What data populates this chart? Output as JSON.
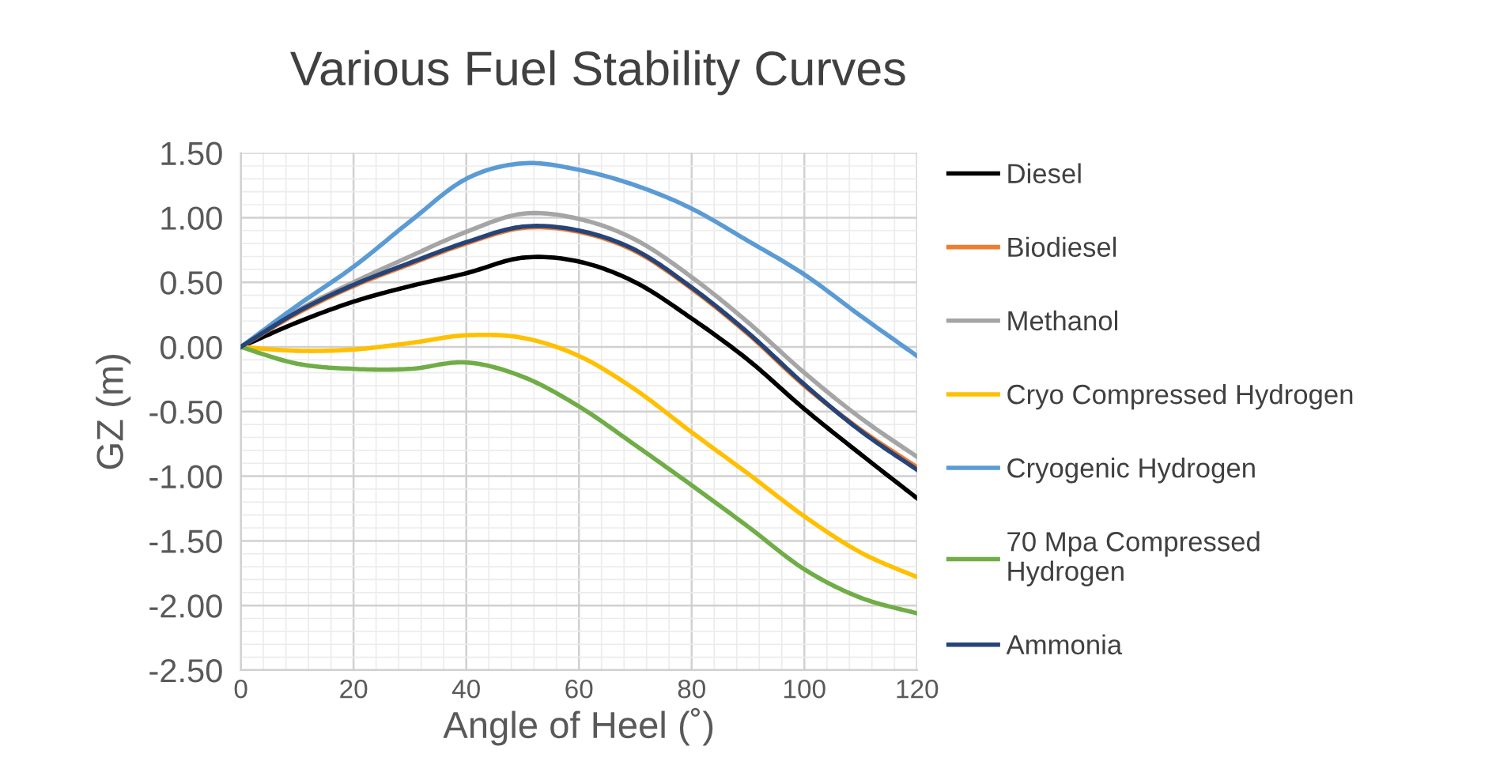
{
  "chart_data": {
    "type": "line",
    "title": "Various Fuel Stability Curves",
    "xlabel": "Angle of Heel (˚)",
    "ylabel": "GZ (m)",
    "x": [
      0,
      10,
      20,
      30,
      40,
      50,
      60,
      70,
      80,
      90,
      100,
      110,
      120
    ],
    "series": [
      {
        "name": "Diesel",
        "color": "#000000",
        "values": [
          0,
          0.19,
          0.35,
          0.47,
          0.57,
          0.69,
          0.66,
          0.5,
          0.22,
          -0.1,
          -0.48,
          -0.83,
          -1.17
        ]
      },
      {
        "name": "Biodiesel",
        "color": "#ed7d31",
        "values": [
          0,
          0.26,
          0.47,
          0.64,
          0.8,
          0.92,
          0.89,
          0.74,
          0.45,
          0.1,
          -0.3,
          -0.64,
          -0.93
        ]
      },
      {
        "name": "Methanol",
        "color": "#a5a5a5",
        "values": [
          0,
          0.28,
          0.5,
          0.7,
          0.89,
          1.03,
          0.99,
          0.83,
          0.54,
          0.19,
          -0.2,
          -0.55,
          -0.85
        ]
      },
      {
        "name": "Cryo Compressed Hydrogen",
        "color": "#ffc000",
        "values": [
          0,
          -0.03,
          -0.02,
          0.03,
          0.09,
          0.07,
          -0.07,
          -0.33,
          -0.66,
          -0.98,
          -1.31,
          -1.59,
          -1.78
        ]
      },
      {
        "name": "Cryogenic Hydrogen",
        "color": "#5b9bd5",
        "values": [
          0,
          0.32,
          0.62,
          0.97,
          1.3,
          1.42,
          1.37,
          1.25,
          1.07,
          0.82,
          0.56,
          0.24,
          -0.07
        ]
      },
      {
        "name": "70 Mpa Compressed\nHydrogen",
        "color": "#70ad47",
        "values": [
          0,
          -0.13,
          -0.17,
          -0.17,
          -0.12,
          -0.23,
          -0.46,
          -0.76,
          -1.07,
          -1.39,
          -1.72,
          -1.94,
          -2.06
        ]
      },
      {
        "name": "Ammonia",
        "color": "#264478",
        "values": [
          0,
          0.27,
          0.48,
          0.65,
          0.81,
          0.93,
          0.9,
          0.75,
          0.46,
          0.11,
          -0.29,
          -0.65,
          -0.95
        ]
      }
    ],
    "xlim": [
      0,
      120
    ],
    "ylim": [
      -2.5,
      1.5
    ],
    "xticks": [
      0,
      20,
      40,
      60,
      80,
      100,
      120
    ],
    "yticks": [
      {
        "value": 1.5,
        "label": "1.50"
      },
      {
        "value": 1.0,
        "label": "1.00"
      },
      {
        "value": 0.5,
        "label": "0.50"
      },
      {
        "value": 0,
        "label": "0.00"
      },
      {
        "value": -0.5,
        "label": "-0.50"
      },
      {
        "value": -1.0,
        "label": "-1.00"
      },
      {
        "value": -1.5,
        "label": "-1.50"
      },
      {
        "value": -2.0,
        "label": "-2.00"
      },
      {
        "value": -2.5,
        "label": "-2.50"
      }
    ],
    "grid": true,
    "legend": "right",
    "marker": "none",
    "line_style": "solid"
  }
}
